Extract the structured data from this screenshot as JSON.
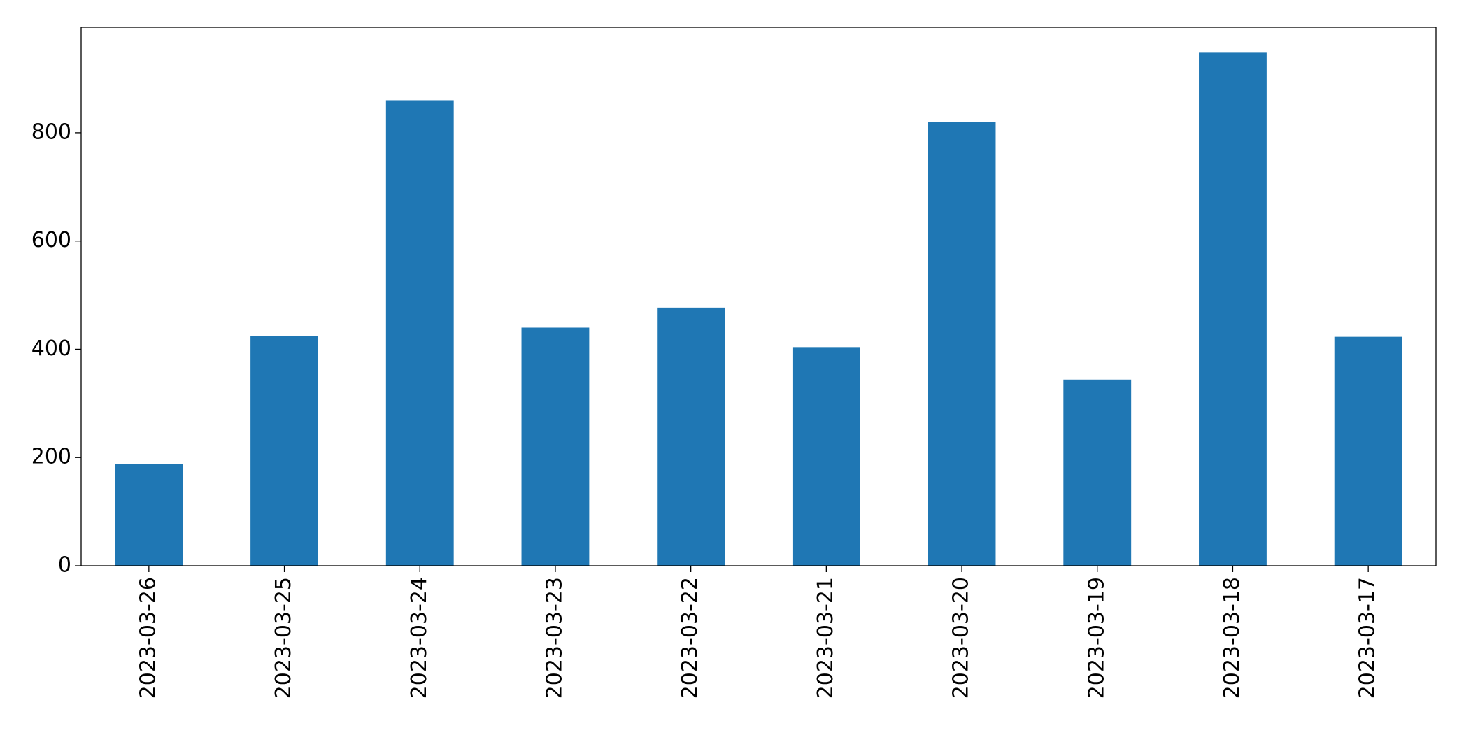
{
  "chart_data": {
    "type": "bar",
    "categories": [
      "2023-03-26",
      "2023-03-25",
      "2023-03-24",
      "2023-03-23",
      "2023-03-22",
      "2023-03-21",
      "2023-03-20",
      "2023-03-19",
      "2023-03-18",
      "2023-03-17"
    ],
    "values": [
      188,
      425,
      860,
      440,
      477,
      404,
      820,
      344,
      948,
      423
    ],
    "color": "#1f77b4",
    "ylim": [
      0,
      995
    ],
    "yticks": [
      0,
      200,
      400,
      600,
      800
    ],
    "grid": false
  }
}
